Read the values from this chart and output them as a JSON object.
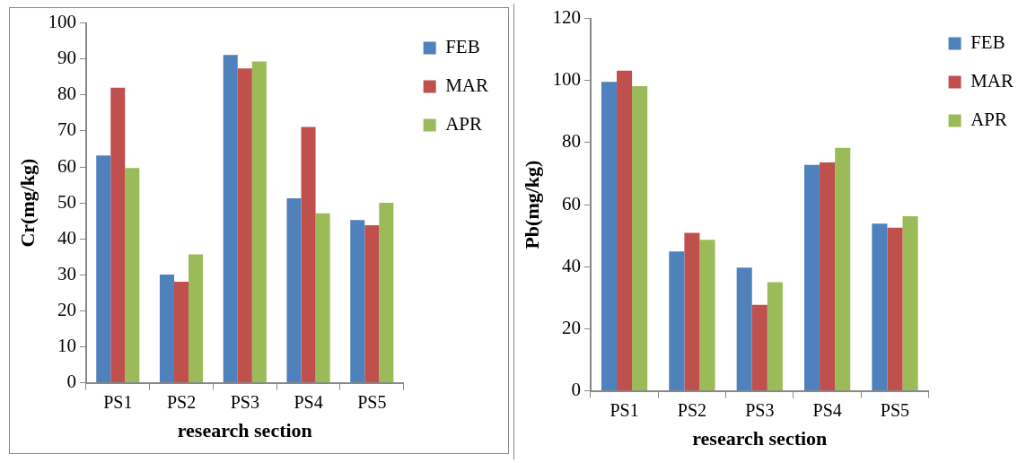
{
  "chart_data": [
    {
      "type": "bar",
      "xlabel": "research section",
      "ylabel": "Cr(mg/kg)",
      "categories": [
        "PS1",
        "PS2",
        "PS3",
        "PS4",
        "PS5"
      ],
      "series": [
        {
          "name": "FEB",
          "color": "#4f81bd",
          "values": [
            63.2,
            30.1,
            91.1,
            51.3,
            45.2
          ]
        },
        {
          "name": "MAR",
          "color": "#c0504d",
          "values": [
            82,
            28.1,
            87.4,
            71.1,
            43.8
          ]
        },
        {
          "name": "APR",
          "color": "#9bbb59",
          "values": [
            59.7,
            35.7,
            89.3,
            47.1,
            50
          ]
        }
      ],
      "ylim": [
        0,
        100
      ],
      "yticks": [
        0,
        10,
        20,
        30,
        40,
        50,
        60,
        70,
        80,
        90,
        100
      ],
      "grid": false,
      "legend": "top right"
    },
    {
      "type": "bar",
      "xlabel": "research section",
      "ylabel": "Pb(mg/kg)",
      "categories": [
        "PS1",
        "PS2",
        "PS3",
        "PS4",
        "PS5"
      ],
      "series": [
        {
          "name": "FEB",
          "color": "#4f81bd",
          "values": [
            99.6,
            44.9,
            39.7,
            72.8,
            53.9
          ]
        },
        {
          "name": "MAR",
          "color": "#c0504d",
          "values": [
            103.2,
            50.9,
            27.7,
            73.6,
            52.6
          ]
        },
        {
          "name": "APR",
          "color": "#9bbb59",
          "values": [
            98.2,
            48.7,
            35,
            78.3,
            56.3
          ]
        }
      ],
      "ylim": [
        0,
        120
      ],
      "yticks": [
        0,
        20,
        40,
        60,
        80,
        100,
        120
      ],
      "grid": false,
      "legend": "top right"
    }
  ]
}
